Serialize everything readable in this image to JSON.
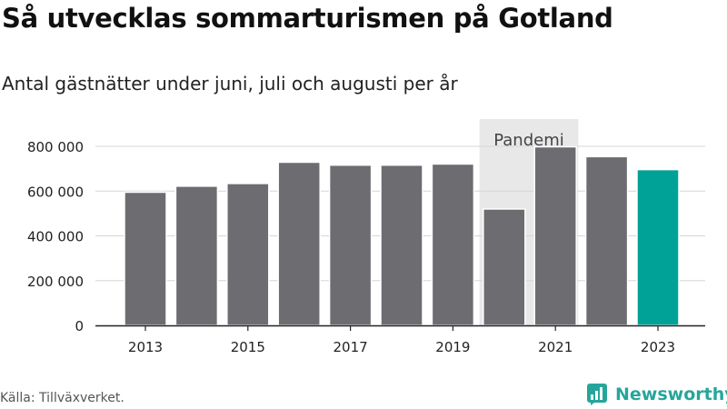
{
  "title": "Så utvecklas sommarturismen på Gotland",
  "subtitle": "Antal gästnätter under juni, juli och augusti per år",
  "source": "Källa: Tillväxverket.",
  "brand": "Newsworthy",
  "colors": {
    "bar": "#6d6c71",
    "highlight": "#00a196",
    "pandemic_band": "#e8e8e8",
    "grid": "#d6d6d6",
    "axis": "#222222",
    "brand": "#26a69a"
  },
  "chart_data": {
    "type": "bar",
    "categories": [
      "2013",
      "2014",
      "2015",
      "2016",
      "2017",
      "2018",
      "2019",
      "2020",
      "2021",
      "2022",
      "2023"
    ],
    "x_tick_labels": [
      "2013",
      "2015",
      "2017",
      "2019",
      "2021",
      "2023"
    ],
    "values": [
      595000,
      622000,
      634000,
      729000,
      716000,
      716000,
      721000,
      520000,
      798000,
      754000,
      696000
    ],
    "highlight_category": "2023",
    "ylim": [
      0,
      800000
    ],
    "y_ticks": [
      0,
      200000,
      400000,
      600000,
      800000
    ],
    "y_tick_labels": [
      "0",
      "200 000",
      "400 000",
      "600 000",
      "800 000"
    ],
    "grid": true,
    "annotation": {
      "label": "Pandemi",
      "from": "2020",
      "to": "2021"
    }
  }
}
